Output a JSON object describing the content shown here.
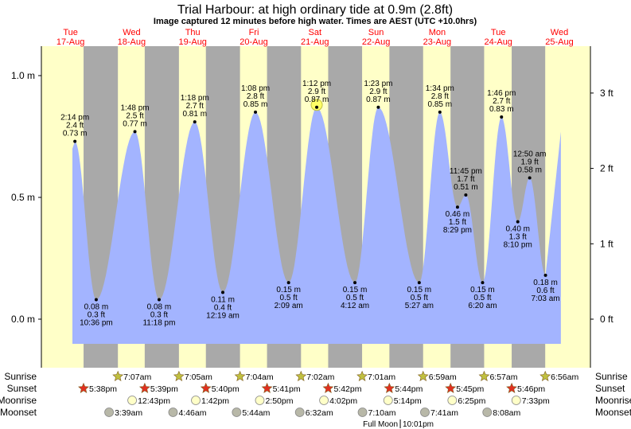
{
  "chart_data": {
    "type": "area",
    "title": "Trial Harbour: at high  ordinary tide at 0.9m (2.8ft)",
    "subtitle": "Image captured 12 minutes before high water. Times are AEST (UTC +10.0hrs)",
    "ylabel_left_unit": "m",
    "ylabel_right_unit": "ft",
    "ylim_m": [
      -0.2,
      1.12
    ],
    "yticks_left": [
      {
        "v": 1.0,
        "label": "1.0 m"
      },
      {
        "v": 0.5,
        "label": "0.5 m"
      },
      {
        "v": 0.0,
        "label": "0.0 m"
      }
    ],
    "yticks_right": [
      {
        "v": 3,
        "label": "3 ft"
      },
      {
        "v": 2,
        "label": "2 ft"
      },
      {
        "v": 1,
        "label": "1 ft"
      },
      {
        "v": 0,
        "label": "0 ft"
      }
    ],
    "days": [
      {
        "dow": "Tue",
        "date": "17-Aug"
      },
      {
        "dow": "Wed",
        "date": "18-Aug"
      },
      {
        "dow": "Thu",
        "date": "19-Aug"
      },
      {
        "dow": "Fri",
        "date": "20-Aug"
      },
      {
        "dow": "Sat",
        "date": "21-Aug"
      },
      {
        "dow": "Sun",
        "date": "22-Aug"
      },
      {
        "dow": "Mon",
        "date": "23-Aug"
      },
      {
        "dow": "Tue",
        "date": "24-Aug"
      },
      {
        "dow": "Wed",
        "date": "25-Aug"
      }
    ],
    "series_start": {
      "day": 0,
      "time": "1:15 pm",
      "m": 0.7
    },
    "series_end": {
      "day": 8,
      "time": "1:05 pm",
      "m": 0.77
    },
    "tides": [
      {
        "type": "high",
        "day": 0,
        "time": "2:14 pm",
        "ft": "2.4 ft",
        "m": 0.73,
        "m_label": "0.73 m"
      },
      {
        "type": "low",
        "day": 0,
        "time": "10:36 pm",
        "ft": "0.3 ft",
        "m": 0.08,
        "m_label": "0.08 m"
      },
      {
        "type": "high",
        "day": 1,
        "time": "1:48 pm",
        "ft": "2.5 ft",
        "m": 0.77,
        "m_label": "0.77 m"
      },
      {
        "type": "low",
        "day": 1,
        "time": "11:18 pm",
        "ft": "0.3 ft",
        "m": 0.08,
        "m_label": "0.08 m"
      },
      {
        "type": "high",
        "day": 2,
        "time": "1:18 pm",
        "ft": "2.7 ft",
        "m": 0.81,
        "m_label": "0.81 m"
      },
      {
        "type": "low",
        "day": 3,
        "time": "12:19 am",
        "ft": "0.4 ft",
        "m": 0.11,
        "m_label": "0.11 m"
      },
      {
        "type": "high",
        "day": 3,
        "time": "1:08 pm",
        "ft": "2.8 ft",
        "m": 0.85,
        "m_label": "0.85 m"
      },
      {
        "type": "low",
        "day": 4,
        "time": "2:09 am",
        "ft": "0.5 ft",
        "m": 0.15,
        "m_label": "0.15 m"
      },
      {
        "type": "high",
        "day": 4,
        "time": "1:12 pm",
        "ft": "2.9 ft",
        "m": 0.87,
        "m_label": "0.87 m",
        "current": true
      },
      {
        "type": "low",
        "day": 5,
        "time": "4:12 am",
        "ft": "0.5 ft",
        "m": 0.15,
        "m_label": "0.15 m"
      },
      {
        "type": "high",
        "day": 5,
        "time": "1:23 pm",
        "ft": "2.9 ft",
        "m": 0.87,
        "m_label": "0.87 m"
      },
      {
        "type": "low",
        "day": 6,
        "time": "5:27 am",
        "ft": "0.5 ft",
        "m": 0.15,
        "m_label": "0.15 m"
      },
      {
        "type": "high",
        "day": 6,
        "time": "1:34 pm",
        "ft": "2.8 ft",
        "m": 0.85,
        "m_label": "0.85 m"
      },
      {
        "type": "low",
        "day": 6,
        "time": "8:29 pm",
        "ft": "1.5 ft",
        "m": 0.46,
        "m_label": "0.46 m"
      },
      {
        "type": "high",
        "day": 6,
        "time": "11:45 pm",
        "ft": "1.7 ft",
        "m": 0.51,
        "m_label": "0.51 m"
      },
      {
        "type": "low",
        "day": 7,
        "time": "6:20 am",
        "ft": "0.5 ft",
        "m": 0.15,
        "m_label": "0.15 m"
      },
      {
        "type": "high",
        "day": 7,
        "time": "1:46 pm",
        "ft": "2.7 ft",
        "m": 0.83,
        "m_label": "0.83 m"
      },
      {
        "type": "low",
        "day": 7,
        "time": "8:10 pm",
        "ft": "1.3 ft",
        "m": 0.4,
        "m_label": "0.40 m"
      },
      {
        "type": "high",
        "day": 8,
        "time": "12:50 am",
        "ft": "1.9 ft",
        "m": 0.58,
        "m_label": "0.58 m"
      },
      {
        "type": "low",
        "day": 8,
        "time": "7:03 am",
        "ft": "0.6 ft",
        "m": 0.18,
        "m_label": "0.18 m"
      }
    ],
    "rows": {
      "sunrise": {
        "label": "Sunrise",
        "events": [
          {
            "day": 1,
            "time": "7:07am"
          },
          {
            "day": 2,
            "time": "7:05am"
          },
          {
            "day": 3,
            "time": "7:04am"
          },
          {
            "day": 4,
            "time": "7:02am"
          },
          {
            "day": 5,
            "time": "7:01am"
          },
          {
            "day": 6,
            "time": "6:59am"
          },
          {
            "day": 7,
            "time": "6:57am"
          },
          {
            "day": 8,
            "time": "6:56am"
          }
        ]
      },
      "sunset": {
        "label": "Sunset",
        "events": [
          {
            "day": 0,
            "time": "5:38pm"
          },
          {
            "day": 1,
            "time": "5:39pm"
          },
          {
            "day": 2,
            "time": "5:40pm"
          },
          {
            "day": 3,
            "time": "5:41pm"
          },
          {
            "day": 4,
            "time": "5:42pm"
          },
          {
            "day": 5,
            "time": "5:44pm"
          },
          {
            "day": 6,
            "time": "5:45pm"
          },
          {
            "day": 7,
            "time": "5:46pm"
          }
        ]
      },
      "moonrise": {
        "label": "Moonrise",
        "events": [
          {
            "day": 1,
            "time": "12:43pm"
          },
          {
            "day": 2,
            "time": "1:42pm"
          },
          {
            "day": 3,
            "time": "2:50pm"
          },
          {
            "day": 4,
            "time": "4:02pm"
          },
          {
            "day": 5,
            "time": "5:14pm"
          },
          {
            "day": 6,
            "time": "6:25pm"
          },
          {
            "day": 7,
            "time": "7:33pm"
          }
        ]
      },
      "moonset": {
        "label": "Moonset",
        "events": [
          {
            "day": 1,
            "time": "3:39am"
          },
          {
            "day": 2,
            "time": "4:46am"
          },
          {
            "day": 3,
            "time": "5:44am"
          },
          {
            "day": 4,
            "time": "6:32am"
          },
          {
            "day": 5,
            "time": "7:10am"
          },
          {
            "day": 6,
            "time": "7:41am"
          },
          {
            "day": 7,
            "time": "8:08am"
          }
        ]
      }
    },
    "moon_phase": {
      "label": "Full Moon",
      "day": 5,
      "time": "10:01pm"
    },
    "colors": {
      "day": "#ffffc8",
      "night": "#a9a9a9",
      "water": "#a3b4ff",
      "day_label": "#ff0000",
      "sunrise": "#c0c040",
      "sunset": "#e03020",
      "moonrise": "#ffffc8",
      "moonset": "#b8b8a8"
    }
  }
}
